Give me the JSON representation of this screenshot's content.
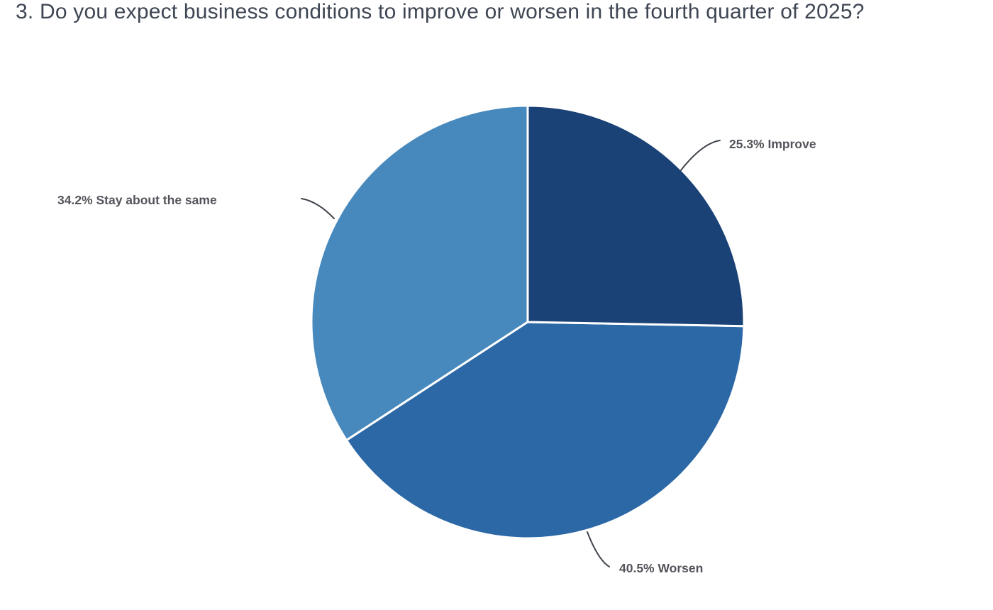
{
  "chart_data": {
    "type": "pie",
    "title": "3. Do you expect business conditions to improve or worsen in the fourth quarter of 2025?",
    "slices": [
      {
        "label": "Improve",
        "value_pct": 25.3,
        "display_label": "25.3% Improve",
        "color": "#1b4276"
      },
      {
        "label": "Worsen",
        "value_pct": 40.5,
        "display_label": "40.5% Worsen",
        "color": "#2c68a6"
      },
      {
        "label": "Stay about the same",
        "value_pct": 34.2,
        "display_label": "34.2% Stay about the same",
        "color": "#4789bc"
      }
    ],
    "start_angle": "12 o'clock",
    "direction": "clockwise",
    "legend": "none",
    "slice_border_color": "#ffffff",
    "label_text_color": "#53535a",
    "leader_line_color": "#40454d",
    "title_color": "#3e4653",
    "background_color": "#ffffff"
  }
}
